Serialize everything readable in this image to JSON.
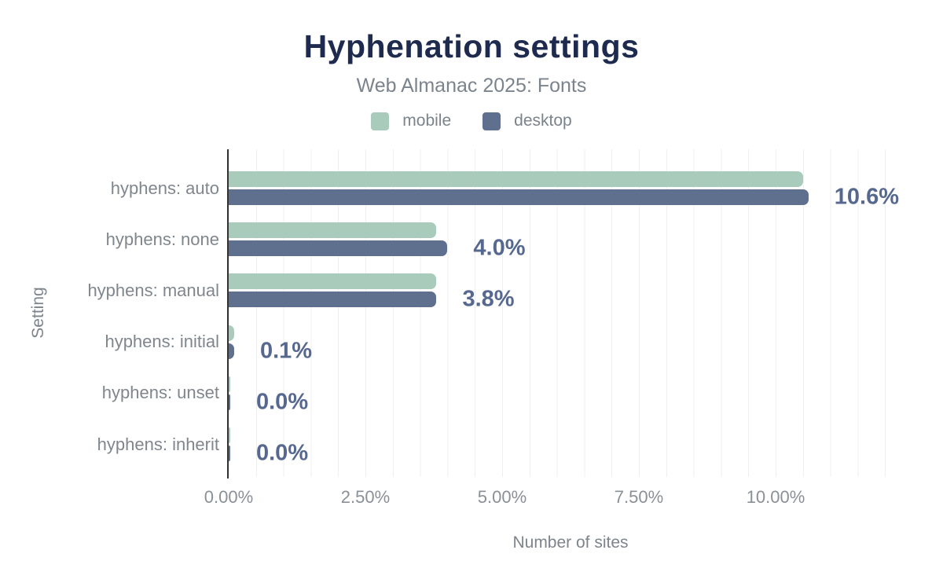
{
  "title": "Hyphenation settings",
  "subtitle": "Web Almanac 2025: Fonts",
  "legend": {
    "items": [
      {
        "label": "mobile",
        "color": "#a8cbbc"
      },
      {
        "label": "desktop",
        "color": "#5f708e"
      }
    ]
  },
  "chart_data": {
    "type": "bar",
    "orientation": "horizontal",
    "title": "Hyphenation settings",
    "subtitle": "Web Almanac 2025: Fonts",
    "xlabel": "Number of sites",
    "ylabel": "Setting",
    "categories": [
      "hyphens: auto",
      "hyphens: none",
      "hyphens: manual",
      "hyphens: initial",
      "hyphens: unset",
      "hyphens: inherit"
    ],
    "series": [
      {
        "name": "mobile",
        "color": "#a8cbbc",
        "values": [
          10.5,
          3.8,
          3.8,
          0.1,
          0.0,
          0.0
        ]
      },
      {
        "name": "desktop",
        "color": "#5f708e",
        "values": [
          10.6,
          4.0,
          3.8,
          0.1,
          0.0,
          0.0
        ]
      }
    ],
    "value_labels": [
      "10.6%",
      "4.0%",
      "3.8%",
      "0.1%",
      "0.0%",
      "0.0%"
    ],
    "x_ticks": [
      {
        "label": "0.00%",
        "value": 0
      },
      {
        "label": "2.50%",
        "value": 2.5
      },
      {
        "label": "5.00%",
        "value": 5
      },
      {
        "label": "7.50%",
        "value": 7.5
      },
      {
        "label": "10.00%",
        "value": 10
      }
    ],
    "xlim": [
      0,
      12.5
    ],
    "grid": {
      "vertical_step_percent": 0.5,
      "color": "#efefef"
    },
    "legend_position": "top"
  },
  "colors": {
    "title": "#1e2b4f",
    "subtitle": "#7b838c",
    "category_label": "#80868d",
    "tick_label": "#8a9096",
    "value_label": "#56688f",
    "axis_line": "#333333",
    "gridline": "#efefef",
    "background": "#ffffff"
  }
}
